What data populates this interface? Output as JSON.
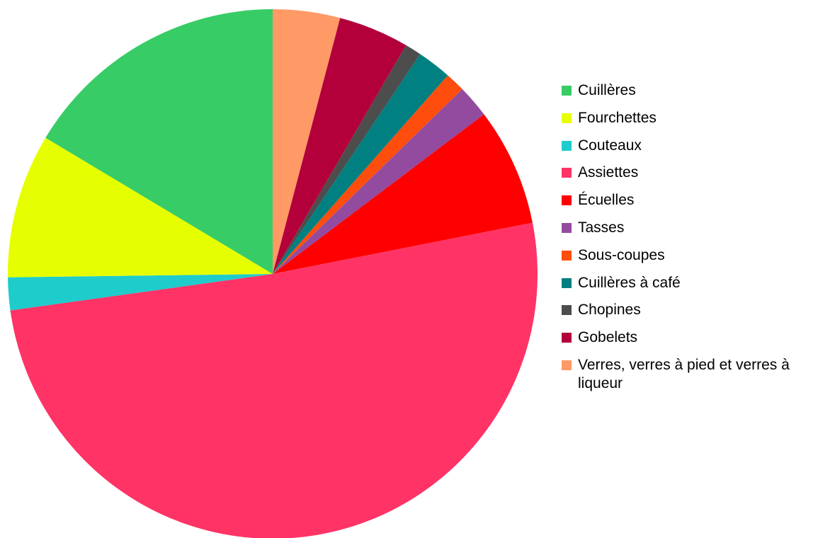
{
  "chart_data": {
    "type": "pie",
    "title": "",
    "legend_position": "right",
    "start_angle": "top, clockwise",
    "slices": [
      {
        "label": "Verres, verres à pied et verres à liqueur",
        "value": 4.1,
        "color": "#ff9966"
      },
      {
        "label": "Gobelets",
        "value": 4.3,
        "color": "#b3003b"
      },
      {
        "label": "Chopines",
        "value": 1.0,
        "color": "#4d4d4d"
      },
      {
        "label": "Cuillères à café",
        "value": 2.1,
        "color": "#008080"
      },
      {
        "label": "Sous-coupes",
        "value": 1.2,
        "color": "#ff4d0d"
      },
      {
        "label": "Tasses",
        "value": 2.0,
        "color": "#934ba0"
      },
      {
        "label": "Écuelles",
        "value": 7.2,
        "color": "#ff0000"
      },
      {
        "label": "Assiettes",
        "value": 50.9,
        "color": "#ff3366"
      },
      {
        "label": "Couteaux",
        "value": 2.0,
        "color": "#1ecccc"
      },
      {
        "label": "Fourchettes",
        "value": 8.8,
        "color": "#e6ff00"
      },
      {
        "label": "Cuillères",
        "value": 16.4,
        "color": "#37cc66"
      }
    ]
  },
  "legend": [
    {
      "label": "Cuillères",
      "color": "#37cc66"
    },
    {
      "label": "Fourchettes",
      "color": "#e6ff00"
    },
    {
      "label": "Couteaux",
      "color": "#1ecccc"
    },
    {
      "label": "Assiettes",
      "color": "#ff3366"
    },
    {
      "label": "Écuelles",
      "color": "#ff0000"
    },
    {
      "label": "Tasses",
      "color": "#934ba0"
    },
    {
      "label": "Sous-coupes",
      "color": "#ff4d0d"
    },
    {
      "label": "Cuillères à café",
      "color": "#008080"
    },
    {
      "label": "Chopines",
      "color": "#4d4d4d"
    },
    {
      "label": "Gobelets",
      "color": "#b3003b"
    },
    {
      "label": "Verres, verres à pied et verres à liqueur",
      "color": "#ff9966"
    }
  ]
}
